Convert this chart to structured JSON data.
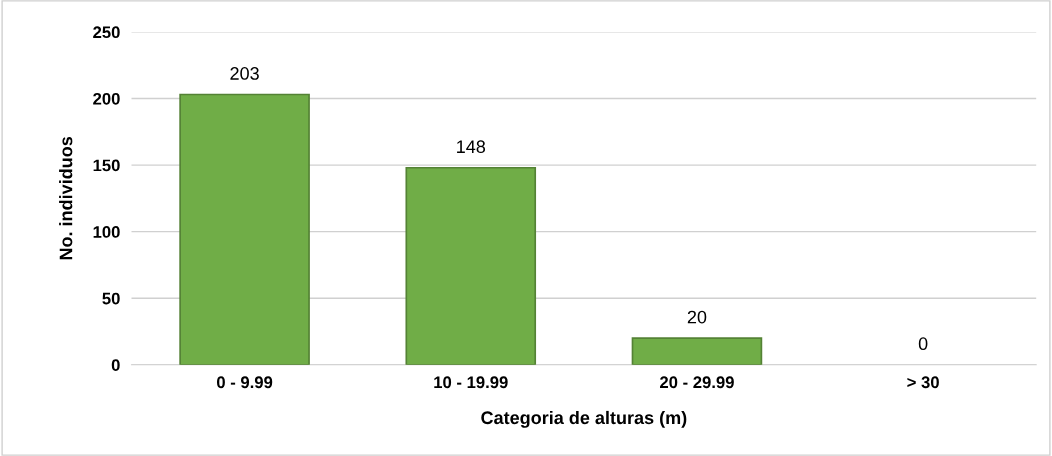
{
  "chart_data": {
    "type": "bar",
    "xlabel": "Categoria de alturas (m)",
    "ylabel": "No. individuos",
    "categories": [
      "0 - 9.99",
      "10 - 19.99",
      "20 - 29.99",
      "> 30"
    ],
    "values": [
      203,
      148,
      20,
      0
    ],
    "color": "#70ad47",
    "ylim": [
      0,
      250
    ],
    "yticks": [
      0,
      50,
      100,
      150,
      200,
      250
    ],
    "grid": "y",
    "data_labels": true
  }
}
